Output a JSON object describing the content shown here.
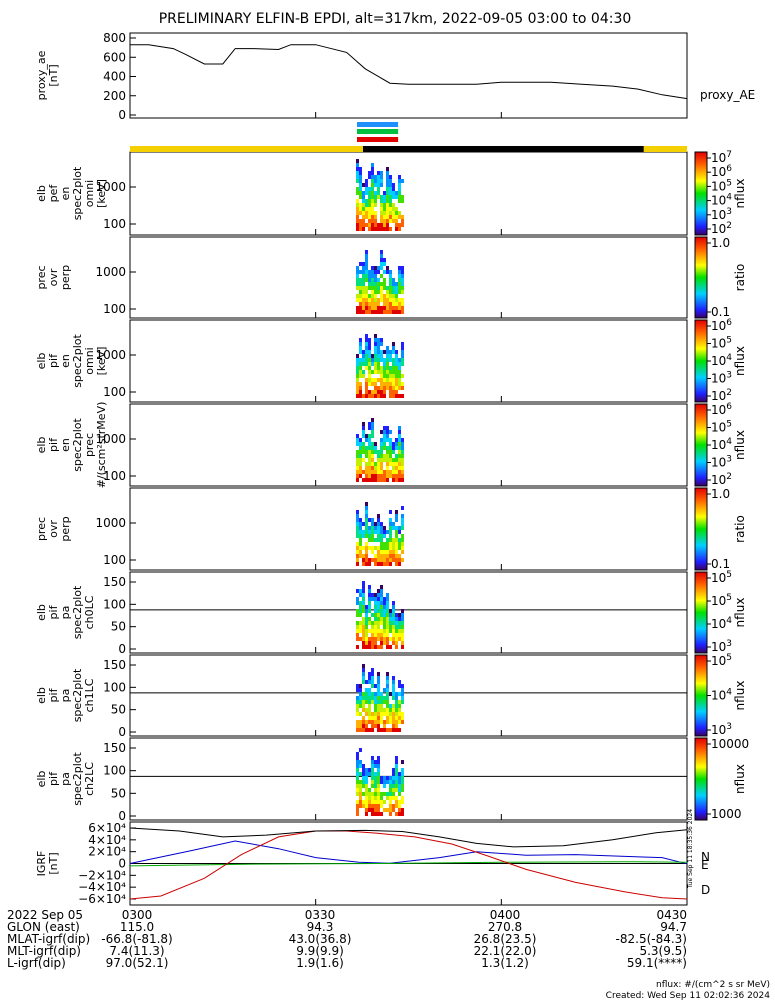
{
  "title": "PRELIMINARY ELFIN-B EPDI, alt=317km, 2022-09-05 03:00 to 04:30",
  "panels": [
    {
      "key": "ae",
      "ylabel": [
        "proxy_ae",
        "[nT]"
      ],
      "yticks": [
        "800",
        "600",
        "400",
        "200",
        "0"
      ],
      "right_label": "proxy_AE"
    },
    {
      "key": "p1",
      "ylabel": [
        "elb",
        "pef",
        "en",
        "spec2plot",
        "omni",
        "[keV]"
      ],
      "yticks": [
        "1000",
        "100"
      ],
      "cbar_ticks": [
        "10",
        "10",
        "10",
        "10",
        "10",
        "10"
      ],
      "cbar_exps": [
        "7",
        "6",
        "5",
        "4",
        "3",
        "2"
      ],
      "cbar_label": "nflux"
    },
    {
      "key": "p2",
      "ylabel": [
        "prec",
        "ovr",
        "perp"
      ],
      "yticks": [
        "1000",
        "100"
      ],
      "cbar_ticks": [
        "1.0",
        "0.1"
      ],
      "cbar_label": "ratio"
    },
    {
      "key": "p3",
      "ylabel": [
        "elb",
        "pif",
        "en",
        "spec2plot",
        "omni",
        "[keV]"
      ],
      "yticks": [
        "1000",
        "100"
      ],
      "cbar_ticks": [
        "10",
        "10",
        "10",
        "10",
        "10"
      ],
      "cbar_exps": [
        "6",
        "5",
        "4",
        "3",
        "2"
      ],
      "cbar_label": "nflux"
    },
    {
      "key": "p4",
      "ylabel": [
        "elb",
        "pif",
        "en",
        "spec2plot",
        "prec",
        "#/(scm²strMeV)"
      ],
      "yticks": [
        "1000",
        "100"
      ],
      "cbar_ticks": [
        "10",
        "10",
        "10",
        "10",
        "10"
      ],
      "cbar_exps": [
        "6",
        "5",
        "4",
        "3",
        "2"
      ],
      "cbar_label": "nflux"
    },
    {
      "key": "p5",
      "ylabel": [
        "prec",
        "ovr",
        "perp"
      ],
      "yticks": [
        "1000",
        "100"
      ],
      "cbar_ticks": [
        "1.0",
        "0.1"
      ],
      "cbar_label": "ratio"
    },
    {
      "key": "p6",
      "ylabel": [
        "elb",
        "pif",
        "pa",
        "spec2plot",
        "ch0LC"
      ],
      "yticks": [
        "150",
        "100",
        "50",
        "0"
      ],
      "cbar_ticks": [
        "10",
        "10",
        "10",
        "10"
      ],
      "cbar_exps": [
        "5",
        "5",
        "4",
        "3"
      ],
      "cbar_label": "nflux"
    },
    {
      "key": "p7",
      "ylabel": [
        "elb",
        "pif",
        "pa",
        "spec2plot",
        "ch1LC"
      ],
      "yticks": [
        "150",
        "100",
        "50",
        "0"
      ],
      "cbar_ticks": [
        "10",
        "10",
        "10"
      ],
      "cbar_exps": [
        "5",
        "4",
        "3"
      ],
      "cbar_label": "nflux"
    },
    {
      "key": "p8",
      "ylabel": [
        "elb",
        "pif",
        "pa",
        "spec2plot",
        "ch2LC"
      ],
      "yticks": [
        "150",
        "100",
        "50",
        "0"
      ],
      "cbar_ticks": [
        "10000",
        "1000"
      ],
      "cbar_label": "nflux"
    },
    {
      "key": "igrf",
      "ylabel": [
        "IGRF",
        "[nT]"
      ],
      "yticks": [
        "6×10⁴",
        "4×10⁴",
        "2×10⁴",
        "0",
        "−2×10⁴",
        "−4×10⁴",
        "−6×10⁴"
      ],
      "legend": [
        "N",
        "E",
        "D"
      ]
    }
  ],
  "axis_table": {
    "rows": [
      [
        "2022 Sep 05",
        "0300",
        "0330",
        "0400",
        "0430"
      ],
      [
        "GLON (east)",
        "115.0",
        "94.3",
        "270.8",
        "94.7"
      ],
      [
        "MLAT-igrf(dip)",
        "-66.8(-81.8)",
        "43.0(36.8)",
        "26.8(23.5)",
        "-82.5(-84.3)"
      ],
      [
        "MLT-igrf(dip)",
        "7.4(11.3)",
        "9.9(9.9)",
        "22.1(22.0)",
        "5.3(9.5)"
      ],
      [
        "L-igrf(dip)",
        "97.0(52.1)",
        "1.9(1.6)",
        "1.3(1.2)",
        "59.1(****)"
      ]
    ]
  },
  "footer": {
    "units": "nflux: #/(cm^2 s sr MeV)",
    "created": "Created: Wed Sep 11 02:02:36 2024",
    "stamp": "Tue Sep 11 18:35:36 2024"
  },
  "colors": {
    "N": "#0000cc",
    "E": "#00aa00",
    "D": "#cc0000",
    "total": "#000000",
    "sunlit": "#f5d000",
    "eclipse": "#000000"
  },
  "chart_data": {
    "type": "line",
    "x_range": [
      "03:00",
      "04:30"
    ],
    "x_ticks": [
      "0300",
      "0330",
      "0400",
      "0430"
    ],
    "proxy_ae": {
      "ylim": [
        0,
        850
      ],
      "times": [
        "03:00",
        "03:03",
        "03:07",
        "03:09",
        "03:12",
        "03:15",
        "03:17",
        "03:20",
        "03:24",
        "03:26",
        "03:30",
        "03:35",
        "03:38",
        "03:42",
        "03:45",
        "03:50",
        "03:56",
        "04:00",
        "04:08",
        "04:13",
        "04:18",
        "04:22",
        "04:26",
        "04:30"
      ],
      "values": [
        730,
        730,
        690,
        630,
        530,
        530,
        690,
        690,
        680,
        730,
        730,
        650,
        480,
        330,
        320,
        320,
        320,
        340,
        340,
        320,
        300,
        270,
        210,
        170
      ]
    },
    "igrf": {
      "ylim": [
        -65000,
        65000
      ],
      "series": [
        {
          "name": "N",
          "times": [
            "03:00",
            "03:10",
            "03:17",
            "03:24",
            "03:30",
            "03:37",
            "03:42",
            "03:50",
            "03:56",
            "04:04",
            "04:12",
            "04:20",
            "04:26",
            "04:30"
          ],
          "values": [
            0,
            22000,
            38000,
            25000,
            10000,
            2000,
            500,
            10000,
            20000,
            14000,
            15000,
            12000,
            10000,
            -500
          ]
        },
        {
          "name": "E",
          "times": [
            "03:00",
            "03:20",
            "03:40",
            "04:00",
            "04:20",
            "04:30"
          ],
          "values": [
            -4000,
            -1000,
            0,
            2000,
            3000,
            2000
          ]
        },
        {
          "name": "D",
          "times": [
            "03:00",
            "03:05",
            "03:12",
            "03:18",
            "03:24",
            "03:30",
            "03:35",
            "03:40",
            "03:46",
            "03:52",
            "03:58",
            "04:04",
            "04:12",
            "04:20",
            "04:26",
            "04:30"
          ],
          "values": [
            -60000,
            -55000,
            -25000,
            15000,
            45000,
            55000,
            55000,
            51000,
            45000,
            33000,
            12000,
            -10000,
            -32000,
            -48000,
            -58000,
            -60000
          ]
        },
        {
          "name": "total",
          "times": [
            "03:00",
            "03:08",
            "03:15",
            "03:22",
            "03:30",
            "03:38",
            "03:44",
            "03:50",
            "03:56",
            "04:02",
            "04:10",
            "04:18",
            "04:25",
            "04:30"
          ],
          "values": [
            60000,
            55000,
            45000,
            48000,
            55000,
            56000,
            54000,
            45000,
            34000,
            28000,
            30000,
            40000,
            52000,
            57000
          ]
        }
      ]
    },
    "science_zone": [
      "03:37",
      "03:43"
    ],
    "colorbar_range_panel1_log": [
      2,
      7
    ]
  }
}
